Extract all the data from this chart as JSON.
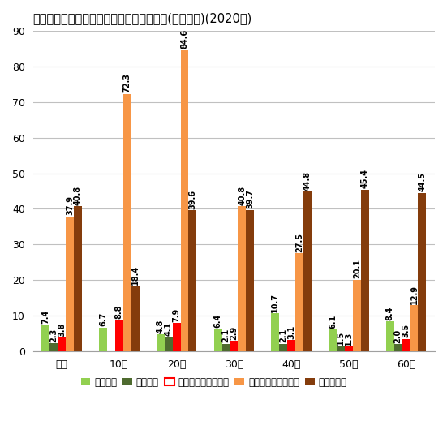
{
  "title": "コミュニケーション系メディアの利用時間(平日、分)(2020年)",
  "categories": [
    "全体",
    "10代",
    "20代",
    "30代",
    "40代",
    "50代",
    "60代"
  ],
  "series": [
    {
      "name": "携帯電話",
      "color": "#92D050",
      "values": [
        7.4,
        6.7,
        4.8,
        6.4,
        10.7,
        6.1,
        8.4
      ]
    },
    {
      "name": "固定電話",
      "color": "#4E6B2F",
      "values": [
        2.3,
        0.0,
        4.1,
        2.1,
        2.1,
        1.5,
        2.0
      ]
    },
    {
      "name": "インターネット通話",
      "color": "#FF0000",
      "values": [
        3.8,
        8.8,
        7.9,
        2.9,
        3.1,
        1.3,
        3.5
      ],
      "legend_edgecolor": "#FF0000"
    },
    {
      "name": "ソーシャルメディア",
      "color": "#F79646",
      "values": [
        37.9,
        72.3,
        84.6,
        40.8,
        27.5,
        20.1,
        12.9
      ]
    },
    {
      "name": "電子メール",
      "color": "#843C0C",
      "values": [
        40.8,
        18.4,
        39.6,
        39.7,
        44.8,
        45.4,
        44.5
      ]
    }
  ],
  "ylim": [
    0,
    90
  ],
  "yticks": [
    0,
    10,
    20,
    30,
    40,
    50,
    60,
    70,
    80,
    90
  ],
  "background_color": "#FFFFFF",
  "plot_bg_color": "#FFFFFF",
  "grid_color": "#C0C0C0",
  "title_fontsize": 10.5,
  "legend_fontsize": 8.5,
  "tick_fontsize": 9,
  "value_fontsize": 7.0
}
